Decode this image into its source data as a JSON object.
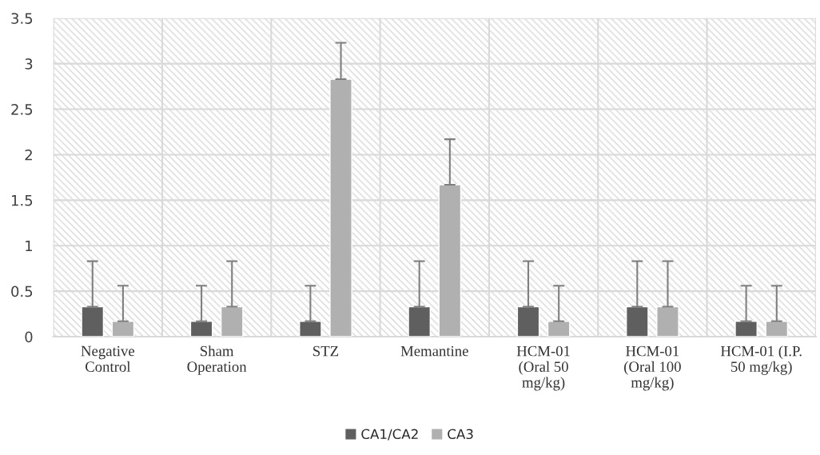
{
  "chart_data": {
    "type": "bar",
    "categories": [
      "Negative\nControl",
      "Sham\nOperation",
      "STZ",
      "Memantine",
      "HCM-01\n(Oral 50\nmg/kg)",
      "HCM-01\n(Oral 100\nmg/kg)",
      "HCM-01 (I.P.\n50 mg/kg)"
    ],
    "series": [
      {
        "name": "CA1/CA2",
        "color": "#5f5f5f",
        "values": [
          0.33,
          0.17,
          0.17,
          0.33,
          0.33,
          0.33,
          0.17
        ],
        "errors": [
          [
            0.33,
            0.83
          ],
          [
            0.17,
            0.56
          ],
          [
            0.17,
            0.56
          ],
          [
            0.33,
            0.83
          ],
          [
            0.33,
            0.83
          ],
          [
            0.33,
            0.83
          ],
          [
            0.17,
            0.56
          ]
        ]
      },
      {
        "name": "CA3",
        "color": "#b0b0b0",
        "values": [
          0.17,
          0.33,
          2.83,
          1.67,
          0.17,
          0.33,
          0.17
        ],
        "errors": [
          [
            0.17,
            0.56
          ],
          [
            0.33,
            0.83
          ],
          [
            2.83,
            3.23
          ],
          [
            1.67,
            2.17
          ],
          [
            0.17,
            0.56
          ],
          [
            0.33,
            0.83
          ],
          [
            0.17,
            0.56
          ]
        ]
      }
    ],
    "ylim": [
      0,
      3.5
    ],
    "yticks": [
      0,
      {
        "value": 0.5,
        "label": "0.5"
      },
      1,
      {
        "value": 1.5,
        "label": "1.5"
      },
      2,
      {
        "value": 2.5,
        "label": "2.5"
      },
      3,
      {
        "value": 3.5,
        "label": "3.5"
      }
    ],
    "grid": true,
    "legend": "bottom"
  }
}
